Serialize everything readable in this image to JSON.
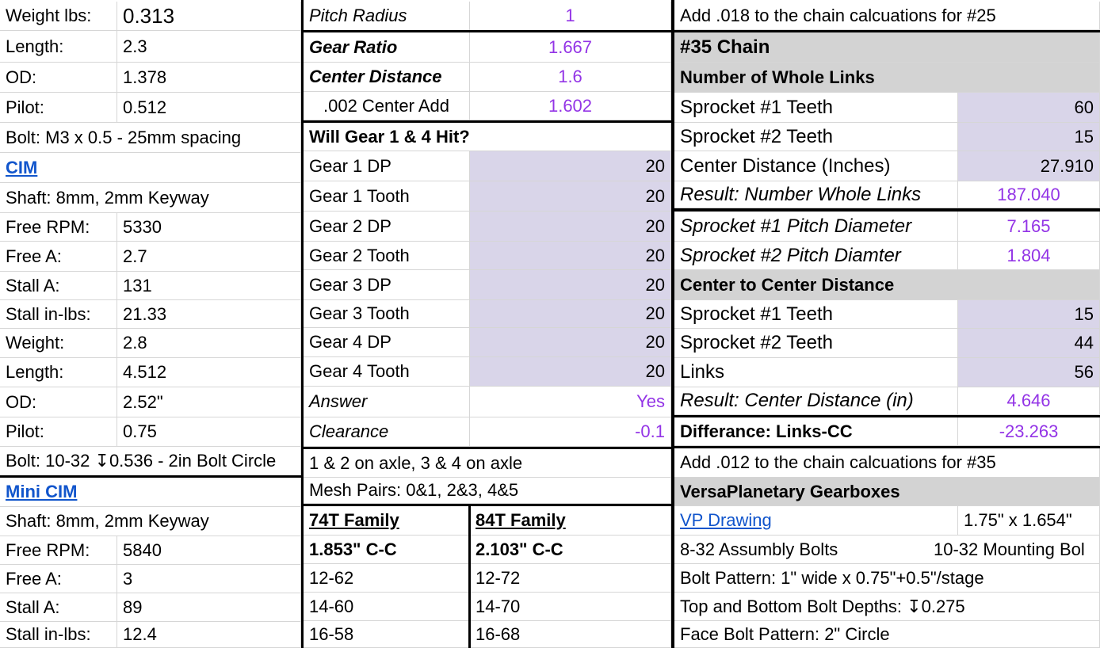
{
  "left": {
    "rows": [
      [
        "Weight lbs:",
        "0.313"
      ],
      [
        "Length:",
        "2.3"
      ],
      [
        "OD:",
        "1.378"
      ],
      [
        "Pilot:",
        "0.512"
      ],
      [
        "Bolt: M3 x 0.5 - 25mm spacing"
      ],
      [
        "CIM"
      ],
      [
        "Shaft: 8mm, 2mm Keyway"
      ],
      [
        "Free RPM:",
        "5330"
      ],
      [
        "Free A:",
        "2.7"
      ],
      [
        "Stall A:",
        "131"
      ],
      [
        "Stall in-lbs:",
        "21.33"
      ],
      [
        "Weight:",
        "2.8"
      ],
      [
        "Length:",
        "4.512"
      ],
      [
        "OD:",
        "2.52\""
      ],
      [
        "Pilot:",
        "0.75"
      ],
      [
        "Bolt: 10-32 ↧0.536 - 2in Bolt Circle"
      ],
      [
        "Mini CIM"
      ],
      [
        "Shaft: 8mm, 2mm Keyway"
      ],
      [
        "Free RPM:",
        "5840"
      ],
      [
        "Free A:",
        "3"
      ],
      [
        "Stall A:",
        "89"
      ],
      [
        "Stall in-lbs:",
        "12.4"
      ]
    ]
  },
  "mid": {
    "rows": [
      [
        "Pitch Radius",
        "1"
      ],
      [
        "Gear Ratio",
        "1.667"
      ],
      [
        "Center Distance",
        "1.6"
      ],
      [
        ".002 Center Add",
        "1.602"
      ],
      [
        "Will Gear 1 & 4 Hit?"
      ],
      [
        "Gear 1 DP",
        "20"
      ],
      [
        "Gear 1 Tooth",
        "20"
      ],
      [
        "Gear 2 DP",
        "20"
      ],
      [
        "Gear 2 Tooth",
        "20"
      ],
      [
        "Gear 3 DP",
        "20"
      ],
      [
        "Gear 3 Tooth",
        "20"
      ],
      [
        "Gear 4 DP",
        "20"
      ],
      [
        "Gear 4 Tooth",
        "20"
      ],
      [
        "Answer",
        "Yes"
      ],
      [
        "Clearance",
        "-0.1"
      ],
      [
        "1 & 2 on axle, 3 & 4 on axle"
      ],
      [
        "Mesh Pairs: 0&1, 2&3, 4&5"
      ],
      [
        "74T Family",
        "84T Family"
      ],
      [
        "1.853\" C-C",
        "2.103\" C-C"
      ],
      [
        "12-62",
        "12-72"
      ],
      [
        "14-60",
        "14-70"
      ],
      [
        "16-58",
        "16-68"
      ]
    ]
  },
  "right": {
    "rows": [
      [
        "Add .018 to the chain calcuations for #25"
      ],
      [
        "#35 Chain"
      ],
      [
        "Number of Whole Links"
      ],
      [
        "Sprocket #1 Teeth",
        "60"
      ],
      [
        "Sprocket #2 Teeth",
        "15"
      ],
      [
        "Center Distance (Inches)",
        "27.910"
      ],
      [
        "Result: Number Whole Links",
        "187.040"
      ],
      [
        "Sprocket #1 Pitch Diameter",
        "7.165"
      ],
      [
        "Sprocket #2 Pitch Diamter",
        "1.804"
      ],
      [
        "Center to Center Distance"
      ],
      [
        "Sprocket #1 Teeth",
        "15"
      ],
      [
        "Sprocket #2 Teeth",
        "44"
      ],
      [
        "Links",
        "56"
      ],
      [
        "Result: Center Distance (in)",
        "4.646"
      ],
      [
        "Differance: Links-CC",
        "-23.263"
      ],
      [
        "Add .012 to the chain calcuations for #35"
      ],
      [
        "VersaPlanetary Gearboxes"
      ],
      [
        "VP Drawing",
        "1.75\" x 1.654\""
      ],
      [
        "8-32 Assumbly Bolts",
        "10-32 Mounting Bol"
      ],
      [
        "Bolt Pattern: 1\" wide x 0.75\"+0.5\"/stage"
      ],
      [
        "Top and Bottom Bolt Depths:  ↧0.275"
      ],
      [
        "Face Bolt Pattern: 2\" Circle"
      ]
    ]
  },
  "colors": {
    "input_fill": "#d9d5e9",
    "header_fill": "#d3d3d3",
    "result_text": "#9334e6",
    "link": "#1155cc"
  }
}
